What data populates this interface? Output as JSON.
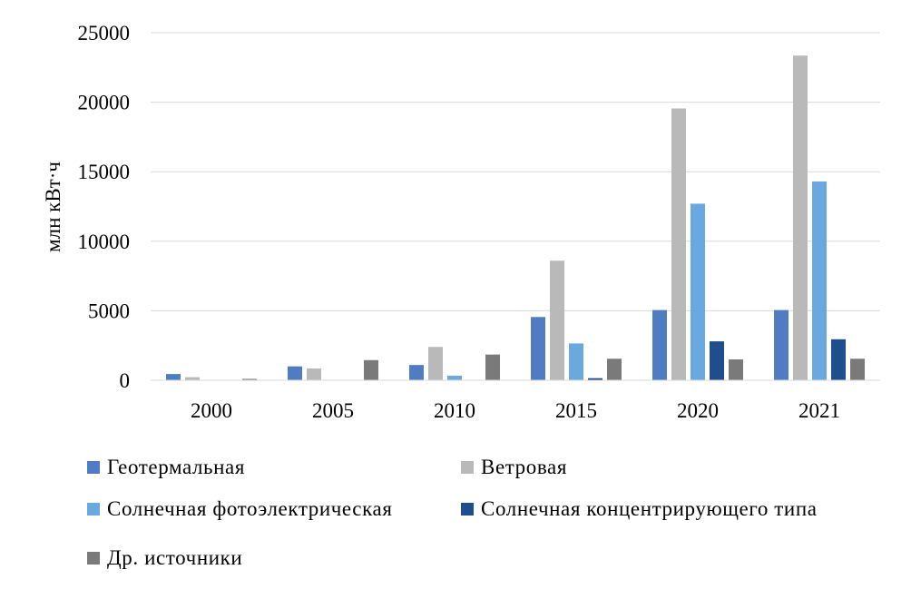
{
  "chart_data": {
    "type": "bar",
    "categories": [
      "2000",
      "2005",
      "2010",
      "2015",
      "2020",
      "2021"
    ],
    "ylabel": "млн кВт·ч",
    "ylim": [
      0,
      25000
    ],
    "yticks": [
      0,
      5000,
      10000,
      15000,
      20000,
      25000
    ],
    "grid": true,
    "legend_position": "bottom",
    "series": [
      {
        "name": "Геотермальная",
        "color": "#4f7cc2",
        "values": [
          450,
          1000,
          1100,
          4550,
          5050,
          5050
        ]
      },
      {
        "name": "Ветровая",
        "color": "#b9b9b9",
        "values": [
          220,
          850,
          2400,
          8600,
          19550,
          23350
        ]
      },
      {
        "name": "Солнечная фотоэлектрическая",
        "color": "#6aa9e0",
        "values": [
          0,
          0,
          330,
          2650,
          12700,
          14300
        ]
      },
      {
        "name": "Солнечная концентрирующего типа",
        "color": "#1f4e8c",
        "values": [
          0,
          0,
          0,
          150,
          2800,
          2950
        ]
      },
      {
        "name": "Др. источники",
        "color": "#7a7a7a",
        "values": [
          100,
          1450,
          1850,
          1550,
          1500,
          1550
        ]
      }
    ]
  }
}
